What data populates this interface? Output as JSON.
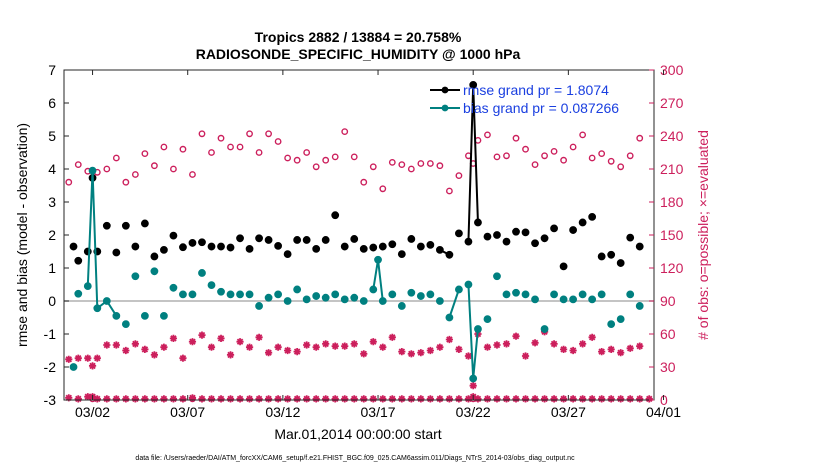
{
  "chart_data": {
    "type": "line",
    "title": "Tropics 2882 / 13884 = 20.758%",
    "subtitle": "RADIOSONDE_SPECIFIC_HUMIDITY @ 1000 hPa",
    "xlabel": "Mar.01,2014 00:00:00 start",
    "ylabel": "rmse and bias (model - observation)",
    "y2label": "# of obs: o=possible; ×=evaluated",
    "footnote": "data file: /Users/raeder/DAI/ATM_forcXX/CAM6_setup/f.e21.FHIST_BGC.f09_025.CAM6assim.011/Diags_NTrS_2014-03/obs_diag_output.nc",
    "x_range_days": [
      0.5,
      31.5
    ],
    "ylim": [
      -3,
      7
    ],
    "y2lim": [
      0,
      300
    ],
    "y_ticks": [
      "-3",
      "-2",
      "-1",
      "0",
      "1",
      "2",
      "3",
      "4",
      "5",
      "6",
      "7"
    ],
    "y2_ticks": [
      "0",
      "30",
      "60",
      "90",
      "120",
      "150",
      "180",
      "210",
      "240",
      "270",
      "300"
    ],
    "x_ticks": [
      {
        "day": 2,
        "label": "03/02"
      },
      {
        "day": 7,
        "label": "03/07"
      },
      {
        "day": 12,
        "label": "03/12"
      },
      {
        "day": 17,
        "label": "03/17"
      },
      {
        "day": 22,
        "label": "03/22"
      },
      {
        "day": 27,
        "label": "03/27"
      },
      {
        "day": 32,
        "label": "04/01"
      }
    ],
    "colors": {
      "rmse": "#000000",
      "bias": "#008080",
      "counts": "#cc1f5c",
      "legend_text": "#1a3fe0",
      "zero_line": "#b0b0b0"
    },
    "series": [
      {
        "name": "rmse grand pr = 1.8074",
        "key": "rmse",
        "points": [
          [
            1.0,
            1.65
          ],
          [
            1.25,
            1.22
          ],
          [
            1.75,
            1.5
          ],
          [
            2.0,
            3.73
          ],
          [
            2.25,
            1.5
          ],
          [
            2.75,
            2.28
          ],
          [
            3.25,
            1.47
          ],
          [
            3.75,
            2.28
          ],
          [
            4.25,
            1.65
          ],
          [
            4.75,
            2.35
          ],
          [
            5.25,
            1.35
          ],
          [
            5.75,
            1.55
          ],
          [
            6.25,
            1.98
          ],
          [
            6.75,
            1.63
          ],
          [
            7.25,
            1.76
          ],
          [
            7.75,
            1.78
          ],
          [
            8.25,
            1.65
          ],
          [
            8.75,
            1.65
          ],
          [
            9.25,
            1.62
          ],
          [
            9.75,
            1.9
          ],
          [
            10.25,
            1.58
          ],
          [
            10.75,
            1.9
          ],
          [
            11.25,
            1.85
          ],
          [
            11.75,
            1.67
          ],
          [
            12.25,
            1.42
          ],
          [
            12.75,
            1.85
          ],
          [
            13.25,
            1.85
          ],
          [
            13.75,
            1.58
          ],
          [
            14.25,
            1.85
          ],
          [
            14.75,
            2.6
          ],
          [
            15.25,
            1.65
          ],
          [
            15.75,
            1.88
          ],
          [
            16.25,
            1.58
          ],
          [
            16.75,
            1.62
          ],
          [
            17.25,
            1.65
          ],
          [
            17.75,
            1.72
          ],
          [
            18.25,
            1.42
          ],
          [
            18.75,
            1.88
          ],
          [
            19.25,
            1.65
          ],
          [
            19.75,
            1.7
          ],
          [
            20.25,
            1.55
          ],
          [
            20.75,
            1.4
          ],
          [
            21.25,
            2.05
          ],
          [
            21.75,
            1.8
          ],
          [
            22.0,
            6.55
          ],
          [
            22.25,
            2.38
          ],
          [
            22.75,
            1.95
          ],
          [
            23.25,
            2.0
          ],
          [
            23.75,
            1.8
          ],
          [
            24.25,
            2.1
          ],
          [
            24.75,
            2.08
          ],
          [
            25.25,
            1.75
          ],
          [
            25.75,
            1.9
          ],
          [
            26.25,
            2.2
          ],
          [
            26.75,
            1.05
          ],
          [
            27.25,
            2.15
          ],
          [
            27.75,
            2.38
          ],
          [
            28.25,
            2.55
          ],
          [
            28.75,
            1.35
          ],
          [
            29.25,
            1.4
          ],
          [
            29.75,
            1.15
          ],
          [
            30.25,
            1.92
          ],
          [
            30.75,
            1.65
          ]
        ],
        "segments": [
          [
            20.25,
            20.75
          ],
          [
            21.75,
            22.0,
            22.25
          ]
        ]
      },
      {
        "name": "bias grand pr = 0.087266",
        "key": "bias",
        "points": [
          [
            1.0,
            -2.0
          ],
          [
            1.25,
            0.22
          ],
          [
            1.75,
            0.45
          ],
          [
            2.0,
            3.95
          ],
          [
            2.25,
            -0.22
          ],
          [
            2.75,
            0.0
          ],
          [
            3.25,
            -0.45
          ],
          [
            3.75,
            -0.7
          ],
          [
            4.25,
            0.75
          ],
          [
            4.75,
            -0.45
          ],
          [
            5.25,
            0.9
          ],
          [
            5.75,
            -0.45
          ],
          [
            6.25,
            0.4
          ],
          [
            6.75,
            0.2
          ],
          [
            7.25,
            0.2
          ],
          [
            7.75,
            0.85
          ],
          [
            8.25,
            0.48
          ],
          [
            8.75,
            0.28
          ],
          [
            9.25,
            0.2
          ],
          [
            9.75,
            0.2
          ],
          [
            10.25,
            0.2
          ],
          [
            10.75,
            -0.15
          ],
          [
            11.25,
            0.1
          ],
          [
            11.75,
            0.2
          ],
          [
            12.25,
            0.0
          ],
          [
            12.75,
            0.35
          ],
          [
            13.25,
            0.05
          ],
          [
            13.75,
            0.15
          ],
          [
            14.25,
            0.1
          ],
          [
            14.75,
            0.2
          ],
          [
            15.25,
            0.05
          ],
          [
            15.75,
            0.1
          ],
          [
            16.25,
            0.0
          ],
          [
            16.75,
            0.35
          ],
          [
            17.0,
            1.25
          ],
          [
            17.25,
            0.0
          ],
          [
            17.75,
            0.2
          ],
          [
            18.25,
            -0.15
          ],
          [
            18.75,
            0.25
          ],
          [
            19.25,
            0.15
          ],
          [
            19.75,
            0.2
          ],
          [
            20.25,
            0.0
          ],
          [
            20.75,
            -0.5
          ],
          [
            21.25,
            0.35
          ],
          [
            21.75,
            0.5
          ],
          [
            22.0,
            -2.35
          ],
          [
            22.25,
            -0.85
          ],
          [
            22.75,
            -0.55
          ],
          [
            23.25,
            0.75
          ],
          [
            23.75,
            0.2
          ],
          [
            24.25,
            0.25
          ],
          [
            24.75,
            0.2
          ],
          [
            25.25,
            0.05
          ],
          [
            25.75,
            -0.85
          ],
          [
            26.25,
            0.2
          ],
          [
            26.75,
            0.05
          ],
          [
            27.25,
            0.05
          ],
          [
            27.75,
            0.2
          ],
          [
            28.25,
            0.05
          ],
          [
            28.75,
            0.2
          ],
          [
            29.25,
            -0.7
          ],
          [
            29.75,
            -0.55
          ],
          [
            30.25,
            0.2
          ],
          [
            30.75,
            -0.15
          ]
        ],
        "segments": [
          [
            1.75,
            2.0,
            2.25,
            2.75,
            3.25
          ],
          [
            16.75,
            17.0,
            17.25
          ],
          [
            20.75,
            21.25
          ],
          [
            21.75,
            22.0,
            22.25
          ]
        ]
      }
    ],
    "counts_possible": [
      [
        0.75,
        198
      ],
      [
        1.25,
        214
      ],
      [
        1.75,
        208
      ],
      [
        2.25,
        207
      ],
      [
        2.75,
        210
      ],
      [
        3.25,
        220
      ],
      [
        3.75,
        198
      ],
      [
        4.25,
        205
      ],
      [
        4.75,
        224
      ],
      [
        5.25,
        213
      ],
      [
        5.75,
        230
      ],
      [
        6.25,
        210
      ],
      [
        6.75,
        228
      ],
      [
        7.25,
        205
      ],
      [
        7.75,
        242
      ],
      [
        8.25,
        225
      ],
      [
        8.75,
        238
      ],
      [
        9.25,
        230
      ],
      [
        9.75,
        230
      ],
      [
        10.25,
        242
      ],
      [
        10.75,
        225
      ],
      [
        11.25,
        242
      ],
      [
        11.75,
        235
      ],
      [
        12.25,
        220
      ],
      [
        12.75,
        218
      ],
      [
        13.25,
        225
      ],
      [
        13.75,
        212
      ],
      [
        14.25,
        218
      ],
      [
        14.75,
        221
      ],
      [
        15.25,
        244
      ],
      [
        15.75,
        221
      ],
      [
        16.25,
        198
      ],
      [
        16.75,
        212
      ],
      [
        17.25,
        192
      ],
      [
        17.75,
        216
      ],
      [
        18.25,
        214
      ],
      [
        18.75,
        210
      ],
      [
        19.25,
        215
      ],
      [
        19.75,
        215
      ],
      [
        20.25,
        213
      ],
      [
        20.75,
        190
      ],
      [
        21.25,
        204
      ],
      [
        21.75,
        222
      ],
      [
        22.0,
        215
      ],
      [
        22.25,
        236
      ],
      [
        22.75,
        241
      ],
      [
        23.25,
        221
      ],
      [
        23.75,
        222
      ],
      [
        24.25,
        238
      ],
      [
        24.75,
        228
      ],
      [
        25.25,
        214
      ],
      [
        25.75,
        222
      ],
      [
        26.25,
        226
      ],
      [
        26.75,
        218
      ],
      [
        27.25,
        230
      ],
      [
        27.75,
        241
      ],
      [
        28.25,
        220
      ],
      [
        28.75,
        224
      ],
      [
        29.25,
        217
      ],
      [
        29.75,
        212
      ],
      [
        30.25,
        222
      ],
      [
        30.75,
        238
      ]
    ],
    "counts_evaluated": [
      [
        0.75,
        37
      ],
      [
        1.25,
        38
      ],
      [
        1.75,
        38
      ],
      [
        2.0,
        31
      ],
      [
        2.25,
        38
      ],
      [
        2.75,
        50
      ],
      [
        3.25,
        50
      ],
      [
        3.75,
        45
      ],
      [
        4.25,
        51
      ],
      [
        4.75,
        46
      ],
      [
        5.25,
        41
      ],
      [
        5.75,
        48
      ],
      [
        6.25,
        56
      ],
      [
        6.75,
        38
      ],
      [
        7.25,
        53
      ],
      [
        7.75,
        59
      ],
      [
        8.25,
        48
      ],
      [
        8.75,
        56
      ],
      [
        9.25,
        41
      ],
      [
        9.75,
        53
      ],
      [
        10.25,
        48
      ],
      [
        10.75,
        57
      ],
      [
        11.25,
        43
      ],
      [
        11.75,
        48
      ],
      [
        12.25,
        45
      ],
      [
        12.75,
        44
      ],
      [
        13.25,
        50
      ],
      [
        13.75,
        48
      ],
      [
        14.25,
        51
      ],
      [
        14.75,
        49
      ],
      [
        15.25,
        49
      ],
      [
        15.75,
        51
      ],
      [
        16.25,
        42
      ],
      [
        16.75,
        53
      ],
      [
        17.25,
        48
      ],
      [
        17.75,
        57
      ],
      [
        18.25,
        44
      ],
      [
        18.75,
        42
      ],
      [
        19.25,
        43
      ],
      [
        19.75,
        45
      ],
      [
        20.25,
        48
      ],
      [
        20.75,
        55
      ],
      [
        21.25,
        46
      ],
      [
        21.75,
        40
      ],
      [
        22.0,
        13
      ],
      [
        22.25,
        60
      ],
      [
        22.75,
        48
      ],
      [
        23.25,
        50
      ],
      [
        23.75,
        51
      ],
      [
        24.25,
        58
      ],
      [
        24.75,
        40
      ],
      [
        25.25,
        52
      ],
      [
        25.75,
        62
      ],
      [
        26.25,
        51
      ],
      [
        26.75,
        46
      ],
      [
        27.25,
        45
      ],
      [
        27.75,
        51
      ],
      [
        28.25,
        57
      ],
      [
        28.75,
        44
      ],
      [
        29.25,
        46
      ],
      [
        29.75,
        43
      ],
      [
        30.25,
        47
      ],
      [
        30.75,
        49
      ]
    ],
    "counts_evaluated_bottom": [
      [
        0.75,
        2
      ],
      [
        1.25,
        1
      ],
      [
        1.75,
        3
      ],
      [
        2.0,
        3
      ],
      [
        2.25,
        1
      ],
      [
        2.75,
        1
      ],
      [
        3.25,
        1
      ],
      [
        3.75,
        1
      ],
      [
        4.25,
        1
      ],
      [
        4.75,
        1
      ],
      [
        5.25,
        1
      ],
      [
        5.75,
        1
      ],
      [
        6.25,
        1
      ],
      [
        6.75,
        1
      ],
      [
        7.25,
        2
      ],
      [
        7.75,
        1
      ],
      [
        8.25,
        1
      ],
      [
        8.75,
        1
      ],
      [
        9.25,
        1
      ],
      [
        9.75,
        1
      ],
      [
        10.25,
        1
      ],
      [
        10.75,
        1
      ],
      [
        11.25,
        1
      ],
      [
        11.75,
        1
      ],
      [
        12.25,
        1
      ],
      [
        12.75,
        1
      ],
      [
        13.25,
        1
      ],
      [
        13.75,
        1
      ],
      [
        14.25,
        1
      ],
      [
        14.75,
        1
      ],
      [
        15.25,
        1
      ],
      [
        15.75,
        1
      ],
      [
        16.25,
        1
      ],
      [
        16.75,
        1
      ],
      [
        17.25,
        1
      ],
      [
        17.75,
        1
      ],
      [
        18.25,
        1
      ],
      [
        18.75,
        1
      ],
      [
        19.25,
        1
      ],
      [
        19.75,
        1
      ],
      [
        20.25,
        1
      ],
      [
        20.75,
        1
      ],
      [
        21.25,
        1
      ],
      [
        21.75,
        1
      ],
      [
        22.0,
        3
      ],
      [
        22.25,
        1
      ],
      [
        22.75,
        1
      ],
      [
        23.25,
        1
      ],
      [
        23.75,
        1
      ],
      [
        24.25,
        1
      ],
      [
        24.75,
        1
      ],
      [
        25.25,
        1
      ],
      [
        25.75,
        1
      ],
      [
        26.25,
        1
      ],
      [
        26.75,
        1
      ],
      [
        27.25,
        1
      ],
      [
        27.75,
        1
      ],
      [
        28.25,
        1
      ],
      [
        28.75,
        1
      ],
      [
        29.25,
        1
      ],
      [
        29.75,
        1
      ],
      [
        30.25,
        1
      ],
      [
        30.75,
        1
      ],
      [
        31.25,
        1
      ]
    ],
    "counts_possible_bottom": [
      [
        2.0,
        1
      ],
      [
        7.25,
        1
      ],
      [
        22.0,
        1
      ]
    ],
    "legend_location": "top-right"
  }
}
